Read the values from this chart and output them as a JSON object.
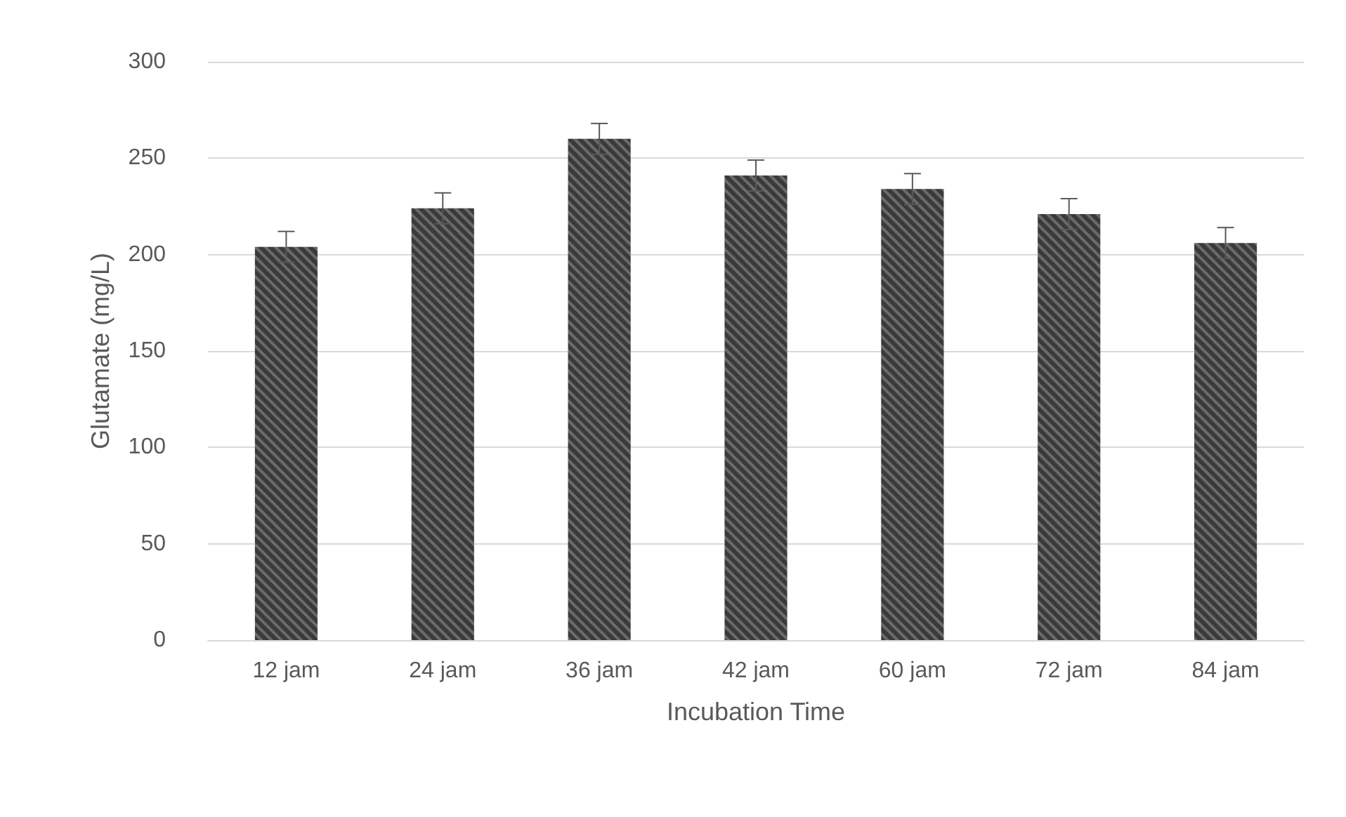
{
  "chart_data": {
    "type": "bar",
    "xlabel": "Incubation Time",
    "ylabel": "Glutamate (mg/L)",
    "categories": [
      "12 jam",
      "24 jam",
      "36 jam",
      "42 jam",
      "60 jam",
      "72 jam",
      "84 jam"
    ],
    "values": [
      204,
      224,
      260,
      241,
      234,
      221,
      206
    ],
    "errors": [
      8,
      8,
      8,
      8,
      8,
      8,
      8
    ],
    "color": "#3a3a3a",
    "ylim": [
      0,
      300
    ],
    "yticks": [
      0,
      50,
      100,
      150,
      200,
      250,
      300
    ],
    "grid": "y"
  }
}
